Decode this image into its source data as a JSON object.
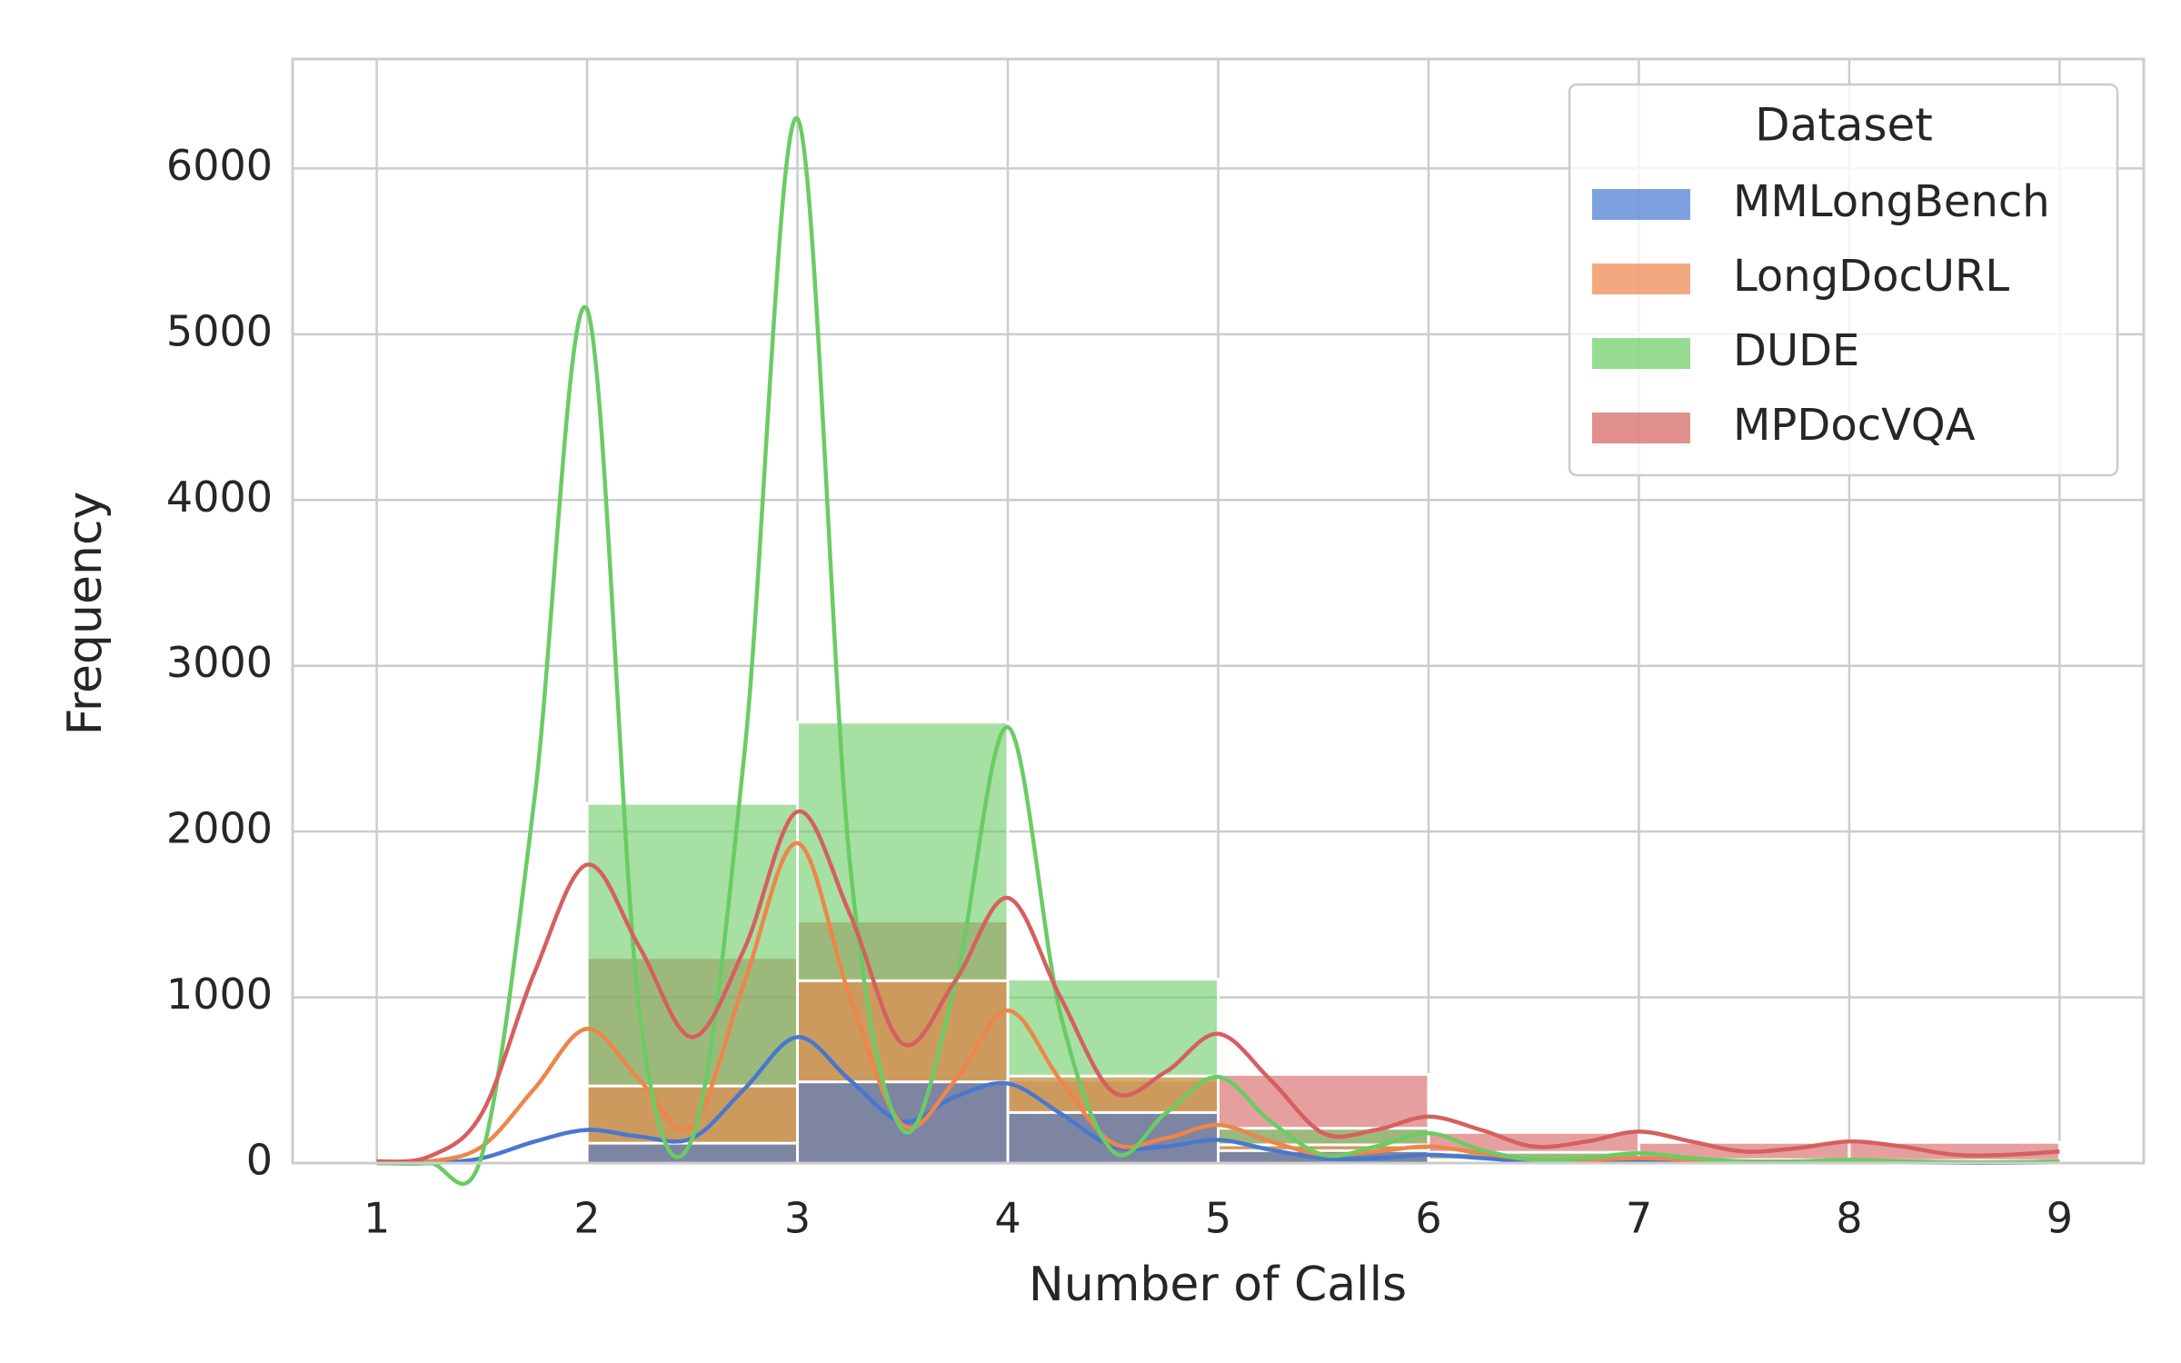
{
  "chart_data": {
    "type": "histogram",
    "xlabel": "Number of Calls",
    "ylabel": "Frequency",
    "bins": [
      2,
      3,
      4,
      5,
      6,
      7,
      8,
      9
    ],
    "series": [
      {
        "name": "MMLongBench",
        "color": "#4878d0",
        "values": [
          120,
          490,
          305,
          75,
          10,
          10,
          5
        ],
        "kde": [
          0,
          0,
          30,
          130,
          200,
          160,
          150,
          450,
          760,
          500,
          250,
          400,
          480,
          300,
          100,
          100,
          140,
          80,
          30,
          30,
          50,
          30,
          10,
          10,
          20,
          10,
          5,
          5,
          10,
          5,
          2,
          2,
          5
        ]
      },
      {
        "name": "LongDocURL",
        "color": "#ee854a",
        "values": [
          465,
          1100,
          525,
          110,
          20,
          20,
          10
        ],
        "kde": [
          0,
          10,
          100,
          450,
          810,
          500,
          220,
          1100,
          1930,
          1000,
          230,
          500,
          920,
          500,
          120,
          150,
          230,
          130,
          50,
          70,
          100,
          60,
          20,
          20,
          30,
          20,
          10,
          10,
          20,
          10,
          5,
          5,
          10
        ]
      },
      {
        "name": "DUDE",
        "color": "#6acc64",
        "values": [
          2170,
          2660,
          1110,
          210,
          65,
          20,
          15
        ],
        "kde": [
          0,
          0,
          50,
          2200,
          5150,
          900,
          150,
          2500,
          6300,
          1800,
          200,
          1080,
          2630,
          900,
          70,
          300,
          520,
          250,
          50,
          100,
          180,
          80,
          20,
          30,
          60,
          30,
          10,
          10,
          20,
          10,
          5,
          5,
          10
        ]
      },
      {
        "name": "MPDocVQA",
        "color": "#d65f5f",
        "values": [
          1240,
          1460,
          500,
          535,
          185,
          125,
          125
        ],
        "kde": [
          10,
          40,
          300,
          1150,
          1800,
          1300,
          760,
          1300,
          2120,
          1500,
          720,
          1100,
          1600,
          1000,
          430,
          550,
          780,
          500,
          180,
          200,
          280,
          200,
          100,
          130,
          190,
          130,
          70,
          90,
          130,
          100,
          50,
          50,
          70
        ]
      }
    ],
    "kde_x": [
      1,
      1.25,
      1.5,
      1.75,
      2,
      2.25,
      2.5,
      2.75,
      3,
      3.25,
      3.5,
      3.75,
      4,
      4.25,
      4.5,
      4.75,
      5,
      5.25,
      5.5,
      5.75,
      6,
      6.25,
      6.5,
      6.75,
      7,
      7.25,
      7.5,
      7.75,
      8,
      8.25,
      8.5,
      8.75,
      9
    ],
    "xlim": [
      0.6,
      9.4
    ],
    "xticks": [
      1,
      2,
      3,
      4,
      5,
      6,
      7,
      8,
      9
    ],
    "ylim": [
      0,
      6660
    ],
    "yticks": [
      0,
      1000,
      2000,
      3000,
      4000,
      5000,
      6000
    ],
    "grid": true,
    "legend": {
      "title": "Dataset",
      "position": "upper right"
    }
  }
}
